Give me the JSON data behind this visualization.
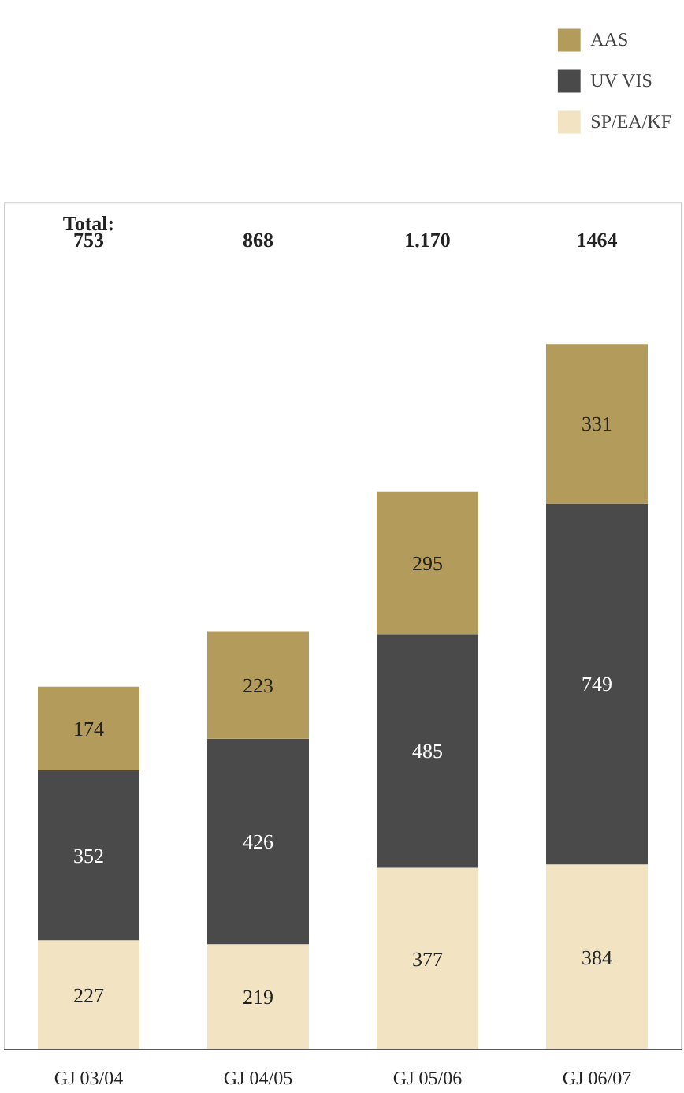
{
  "chart_data": {
    "type": "bar",
    "stacked": true,
    "categories": [
      "GJ 03/04",
      "GJ 04/05",
      "GJ 05/06",
      "GJ 06/07"
    ],
    "series": [
      {
        "name": "SP/EA/KF",
        "color": "#f2e4c2",
        "values": [
          227,
          219,
          377,
          384
        ]
      },
      {
        "name": "UV VIS",
        "color": "#4a4a4a",
        "values": [
          352,
          426,
          485,
          749
        ]
      },
      {
        "name": "AAS",
        "color": "#b39b5c",
        "values": [
          174,
          223,
          295,
          331
        ]
      }
    ],
    "data_labels": true,
    "annotations": [
      "Total:",
      "753",
      "868",
      "1.170",
      "1464"
    ],
    "legend": "top right",
    "grid": false
  }
}
